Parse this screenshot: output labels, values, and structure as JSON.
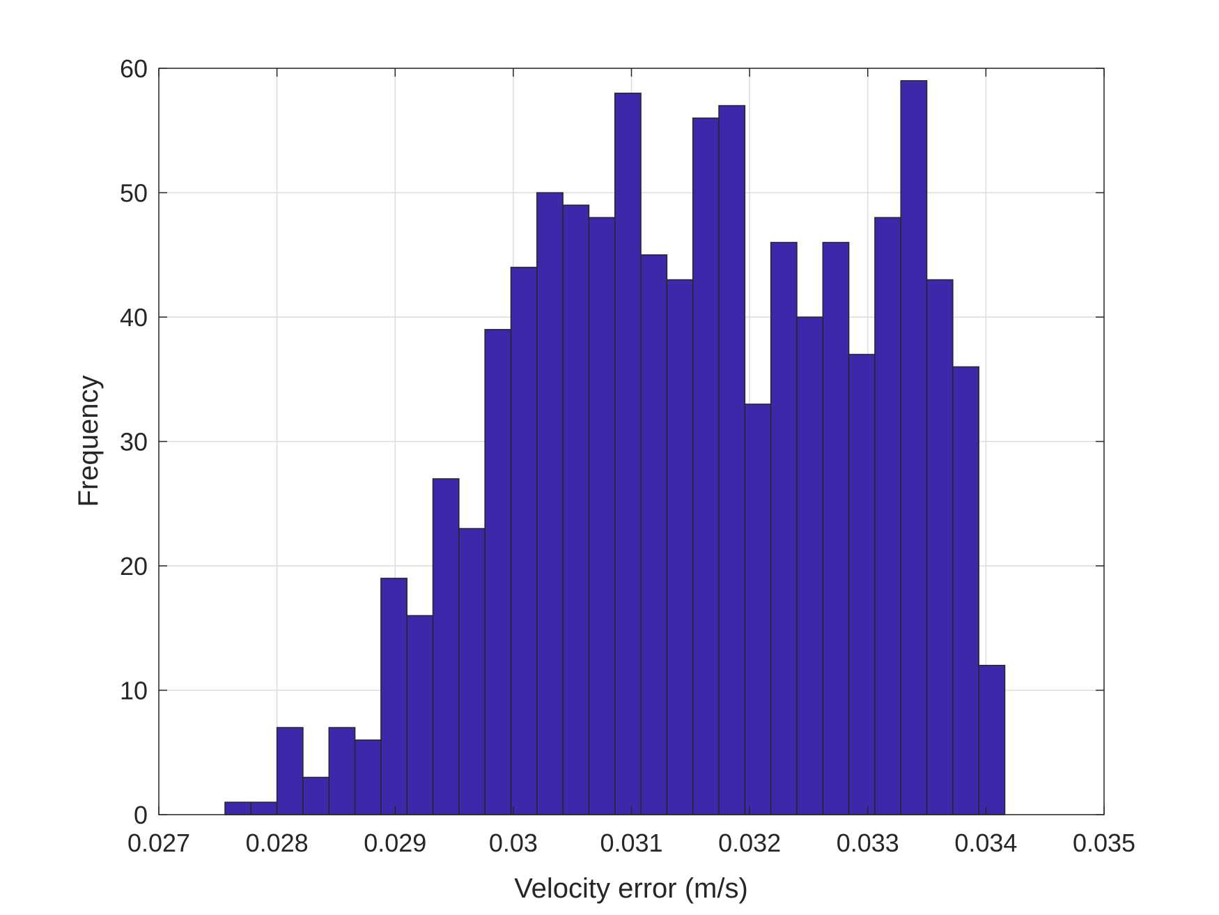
{
  "chart_data": {
    "type": "bar",
    "title": "",
    "xlabel": "Velocity error (m/s)",
    "ylabel": "Frequency",
    "xlim": [
      0.027,
      0.035
    ],
    "ylim": [
      0,
      60
    ],
    "xticks": [
      "0.027",
      "0.028",
      "0.029",
      "0.03",
      "0.031",
      "0.032",
      "0.033",
      "0.034",
      "0.035"
    ],
    "yticks": [
      "0",
      "10",
      "20",
      "30",
      "40",
      "50",
      "60"
    ],
    "grid": true,
    "bin_start": 0.02756,
    "bin_width": 0.00022,
    "values": [
      1,
      1,
      7,
      3,
      7,
      6,
      19,
      16,
      27,
      23,
      39,
      44,
      50,
      49,
      48,
      58,
      45,
      43,
      56,
      57,
      33,
      46,
      40,
      46,
      37,
      48,
      59,
      43,
      36,
      12
    ],
    "bar_color": "#3d28aa",
    "edge_color": "#262626"
  }
}
